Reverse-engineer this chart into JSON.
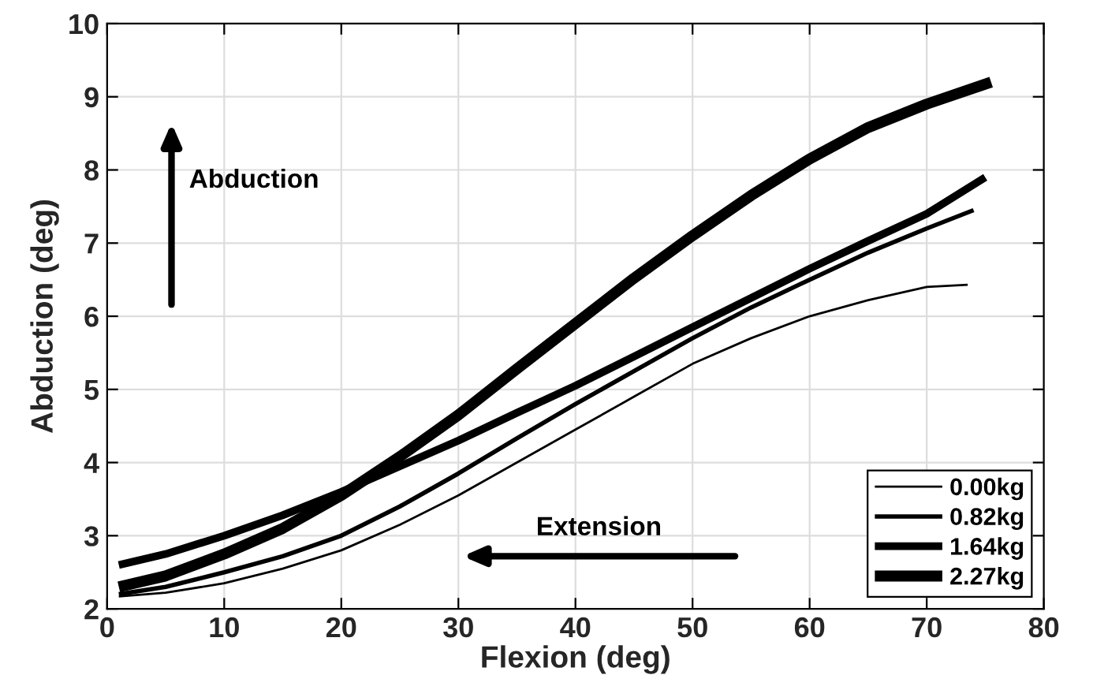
{
  "chart_data": {
    "type": "line",
    "xlabel": "Flexion (deg)",
    "ylabel": "Abduction (deg)",
    "xlim": [
      0,
      80
    ],
    "ylim": [
      2,
      10
    ],
    "xticks": [
      0,
      10,
      20,
      30,
      40,
      50,
      60,
      70,
      80
    ],
    "yticks": [
      2,
      3,
      4,
      5,
      6,
      7,
      8,
      9,
      10
    ],
    "grid": true,
    "legend": "bottom right",
    "marker": "none",
    "line_style": "solid",
    "x": [
      1,
      5,
      10,
      15,
      20,
      25,
      30,
      35,
      40,
      45,
      50,
      55,
      60,
      65,
      70,
      73.5
    ],
    "series": [
      {
        "name": "0.00kg",
        "color": "#000000",
        "values": [
          2.17,
          2.22,
          2.35,
          2.55,
          2.8,
          3.15,
          3.55,
          4.0,
          4.45,
          4.9,
          5.35,
          5.7,
          6.0,
          6.22,
          6.4,
          6.43
        ]
      },
      {
        "name": "0.82kg",
        "color": "#000000",
        "x": [
          1,
          5,
          10,
          15,
          20,
          25,
          30,
          35,
          40,
          45,
          50,
          55,
          60,
          65,
          70,
          74
        ],
        "values": [
          2.2,
          2.3,
          2.5,
          2.72,
          3.0,
          3.4,
          3.85,
          4.33,
          4.8,
          5.25,
          5.7,
          6.12,
          6.5,
          6.87,
          7.2,
          7.45
        ]
      },
      {
        "name": "1.64kg",
        "color": "#000000",
        "x": [
          1,
          5,
          10,
          15,
          20,
          25,
          30,
          35,
          40,
          45,
          50,
          55,
          60,
          65,
          70,
          75
        ],
        "values": [
          2.6,
          2.75,
          3.0,
          3.28,
          3.6,
          3.95,
          4.3,
          4.68,
          5.05,
          5.45,
          5.85,
          6.25,
          6.65,
          7.03,
          7.4,
          7.9
        ]
      },
      {
        "name": "2.27kg",
        "color": "#000000",
        "x": [
          1,
          5,
          10,
          15,
          20,
          25,
          30,
          35,
          40,
          45,
          50,
          55,
          60,
          65,
          70,
          75.5
        ],
        "values": [
          2.3,
          2.45,
          2.75,
          3.1,
          3.55,
          4.08,
          4.65,
          5.28,
          5.9,
          6.52,
          7.1,
          7.65,
          8.15,
          8.58,
          8.9,
          9.2
        ]
      }
    ],
    "annotations": [
      "Abduction",
      "Extension"
    ]
  }
}
